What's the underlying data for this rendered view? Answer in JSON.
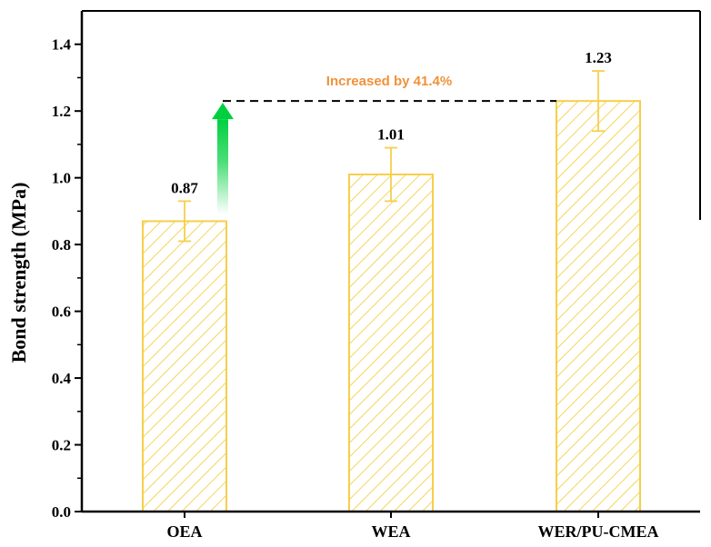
{
  "chart_data": {
    "type": "bar",
    "categories": [
      "OEA",
      "WEA",
      "WER/PU-CMEA"
    ],
    "values": [
      0.87,
      1.01,
      1.23
    ],
    "errors": [
      0.06,
      0.08,
      0.09
    ],
    "value_labels": [
      "0.87",
      "1.01",
      "1.23"
    ],
    "ylabel": "Bond strength (MPa)",
    "xlabel": "",
    "ylim": [
      0,
      1.5
    ],
    "yticks": [
      "0.0",
      "0.2",
      "0.4",
      "0.6",
      "0.8",
      "1.0",
      "1.2",
      "1.4"
    ],
    "grid": false,
    "annotation": {
      "text": "Increased by 41.4%",
      "from": "OEA",
      "to": "WER/PU-CMEA",
      "level": 1.23
    },
    "colors": {
      "bar_edge": "#f5cf4a",
      "hatch": "#f5cf4a",
      "annotation_text": "#f0913a",
      "arrow": "#00d040"
    }
  }
}
